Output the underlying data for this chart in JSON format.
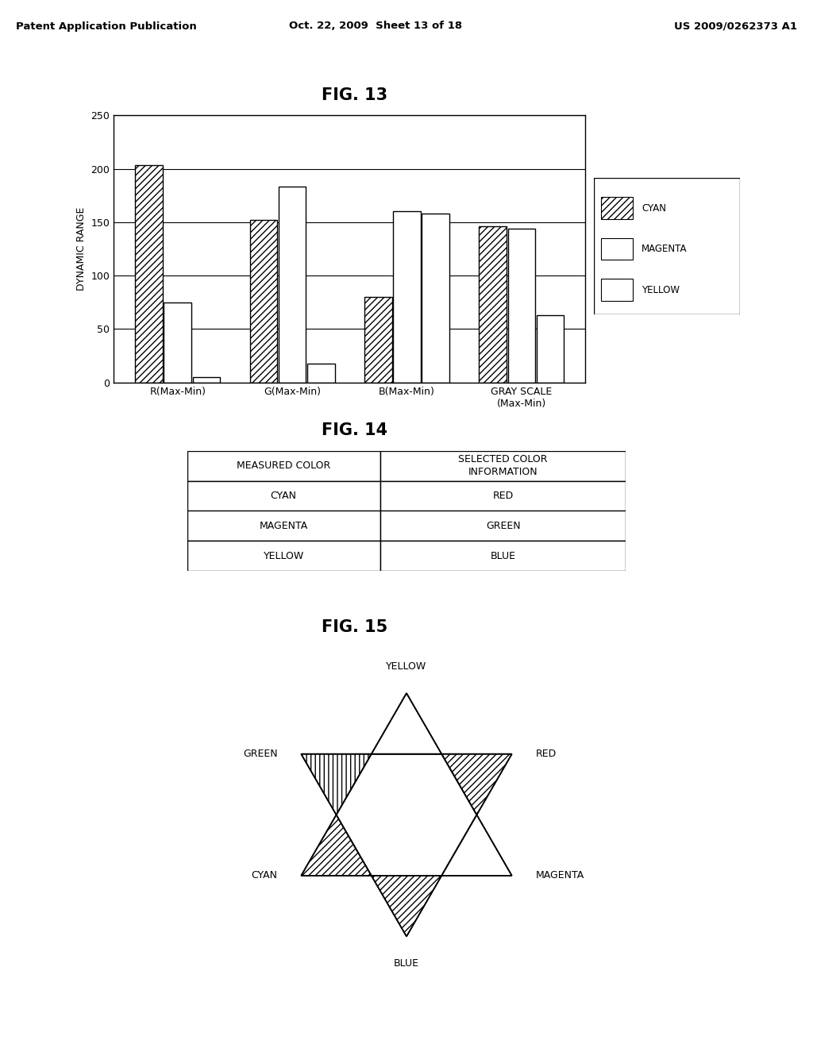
{
  "fig13_title": "FIG. 13",
  "fig14_title": "FIG. 14",
  "fig15_title": "FIG. 15",
  "header_left": "Patent Application Publication",
  "header_mid": "Oct. 22, 2009  Sheet 13 of 18",
  "header_right": "US 2009/0262373 A1",
  "bar_categories": [
    "R(Max-Min)",
    "G(Max-Min)",
    "B(Max-Min)",
    "GRAY SCALE\n(Max-Min)"
  ],
  "cyan_values": [
    203,
    152,
    80,
    146
  ],
  "magenta_values": [
    75,
    183,
    160,
    144
  ],
  "yellow_values": [
    5,
    18,
    158,
    63
  ],
  "ylim": [
    0,
    250
  ],
  "yticks": [
    0,
    50,
    100,
    150,
    200,
    250
  ],
  "ylabel": "DYNAMIC RANGE",
  "legend_labels": [
    "CYAN",
    "MAGENTA",
    "YELLOW"
  ],
  "fig14_col1_header": "MEASURED COLOR",
  "fig14_col2_header": "SELECTED COLOR\nINFORMATION",
  "fig14_rows": [
    [
      "CYAN",
      "RED"
    ],
    [
      "MAGENTA",
      "GREEN"
    ],
    [
      "YELLOW",
      "BLUE"
    ]
  ],
  "fig15_labels": {
    "top": "YELLOW",
    "top_left": "GREEN",
    "top_right": "RED",
    "bottom_left": "CYAN",
    "bottom_right": "MAGENTA",
    "bottom": "BLUE"
  },
  "background_color": "#ffffff"
}
